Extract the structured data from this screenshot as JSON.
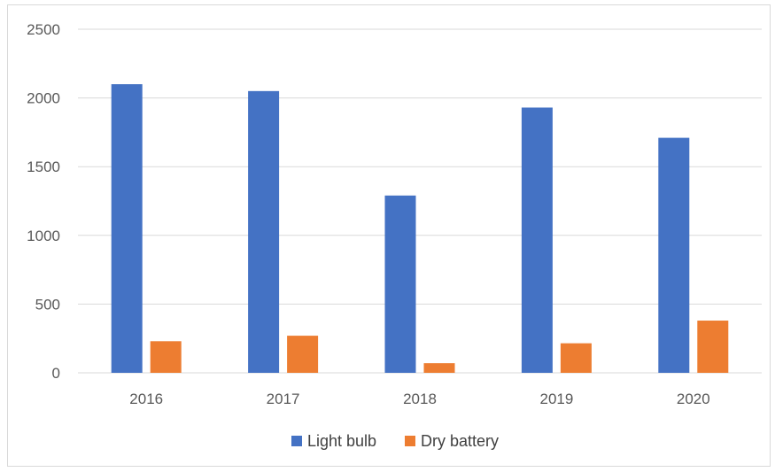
{
  "chart_data": {
    "type": "bar",
    "title": "",
    "xlabel": "",
    "ylabel": "",
    "categories": [
      "2016",
      "2017",
      "2018",
      "2019",
      "2020"
    ],
    "series": [
      {
        "name": "Light bulb",
        "color": "#4472C4",
        "values": [
          2100,
          2050,
          1290,
          1930,
          1710
        ]
      },
      {
        "name": "Dry battery",
        "color": "#ED7D31",
        "values": [
          230,
          270,
          70,
          215,
          380
        ]
      }
    ],
    "ylim": [
      0,
      2500
    ],
    "yticks": [
      "0",
      "500",
      "1000",
      "1500",
      "2000",
      "2500"
    ],
    "grid": true,
    "legend_position": "bottom"
  }
}
